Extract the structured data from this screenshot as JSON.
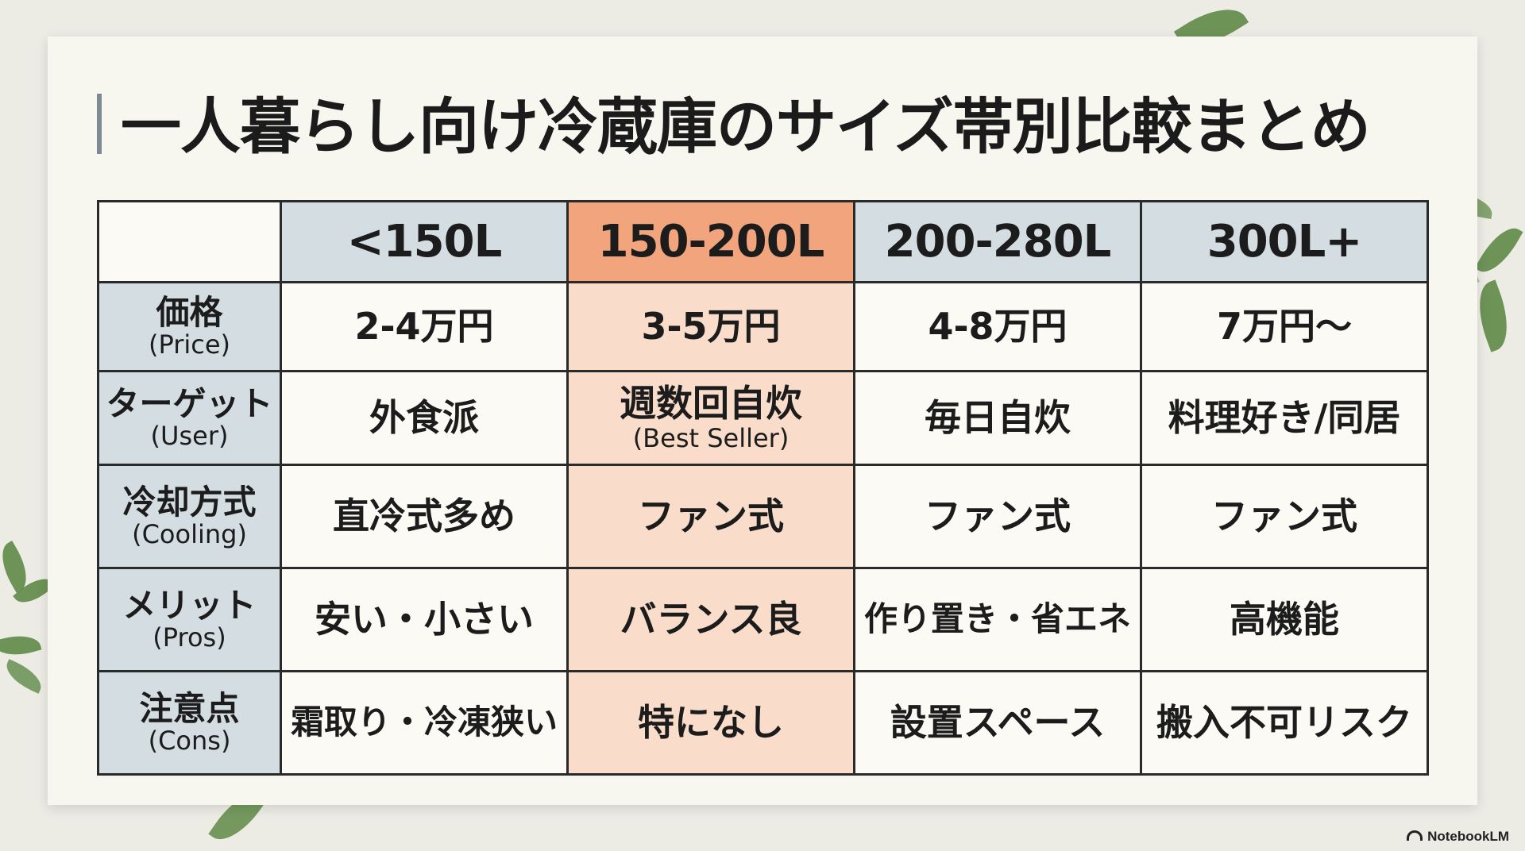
{
  "title": "一人暮らし向け冷蔵庫のサイズ帯別比較まとめ",
  "colors": {
    "header_bg": "#d3dde2",
    "highlight_header": "#f2a47c",
    "highlight_cell": "#f9dcc9",
    "cell_bg": "#fbfaf5",
    "background": "#ecebe4",
    "leaf": "#5f8a47"
  },
  "table": {
    "columns": [
      "<150L",
      "150-200L",
      "200-280L",
      "300L+"
    ],
    "highlighted_column": 1,
    "rows": [
      {
        "label": "価格",
        "sublabel": "(Price)",
        "cells": [
          {
            "text": "2-4万円",
            "sub": ""
          },
          {
            "text": "3-5万円",
            "sub": ""
          },
          {
            "text": "4-8万円",
            "sub": ""
          },
          {
            "text": "7万円〜",
            "sub": ""
          }
        ]
      },
      {
        "label": "ターゲット",
        "sublabel": "(User)",
        "cells": [
          {
            "text": "外食派",
            "sub": ""
          },
          {
            "text": "週数回自炊",
            "sub": "(Best Seller)"
          },
          {
            "text": "毎日自炊",
            "sub": ""
          },
          {
            "text": "料理好き/同居",
            "sub": ""
          }
        ]
      },
      {
        "label": "冷却方式",
        "sublabel": "(Cooling)",
        "cells": [
          {
            "text": "直冷式多め",
            "sub": ""
          },
          {
            "text": "ファン式",
            "sub": ""
          },
          {
            "text": "ファン式",
            "sub": ""
          },
          {
            "text": "ファン式",
            "sub": ""
          }
        ]
      },
      {
        "label": "メリット",
        "sublabel": "(Pros)",
        "cells": [
          {
            "text": "安い・小さい",
            "sub": ""
          },
          {
            "text": "バランス良",
            "sub": ""
          },
          {
            "text": "作り置き・省エネ",
            "sub": ""
          },
          {
            "text": "高機能",
            "sub": ""
          }
        ]
      },
      {
        "label": "注意点",
        "sublabel": "(Cons)",
        "cells": [
          {
            "text": "霜取り・冷凍狭い",
            "sub": ""
          },
          {
            "text": "特になし",
            "sub": ""
          },
          {
            "text": "設置スペース",
            "sub": ""
          },
          {
            "text": "搬入不可リスク",
            "sub": ""
          }
        ]
      }
    ]
  },
  "brand": {
    "icon": "notebooklm-logo-icon",
    "label": "NotebookLM"
  }
}
